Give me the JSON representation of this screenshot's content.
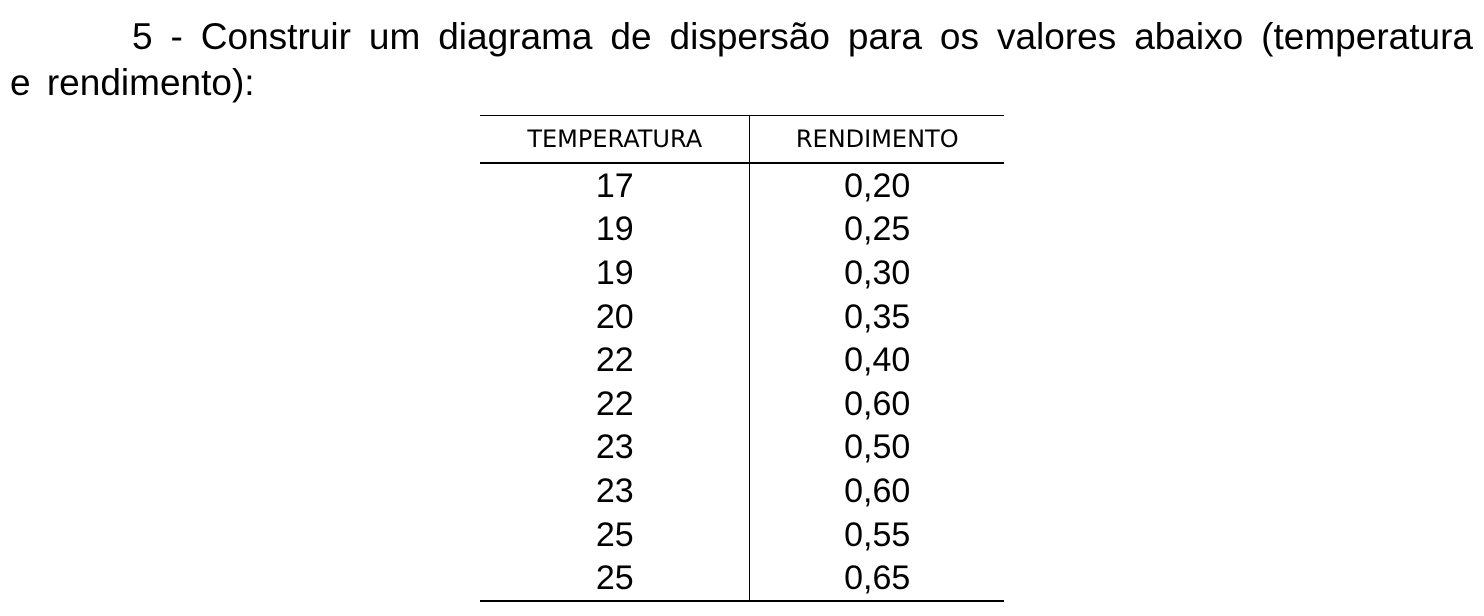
{
  "question": {
    "text": "5 - Construir um diagrama de dispersão para os valores abaixo (temperatura e rendimento):"
  },
  "table": {
    "headers": [
      "TEMPERATURA",
      "RENDIMENTO"
    ],
    "rows": [
      [
        "17",
        "0,20"
      ],
      [
        "19",
        "0,25"
      ],
      [
        "19",
        "0,30"
      ],
      [
        "20",
        "0,35"
      ],
      [
        "22",
        "0,40"
      ],
      [
        "22",
        "0,60"
      ],
      [
        "23",
        "0,50"
      ],
      [
        "23",
        "0,60"
      ],
      [
        "25",
        "0,55"
      ],
      [
        "25",
        "0,65"
      ]
    ]
  }
}
